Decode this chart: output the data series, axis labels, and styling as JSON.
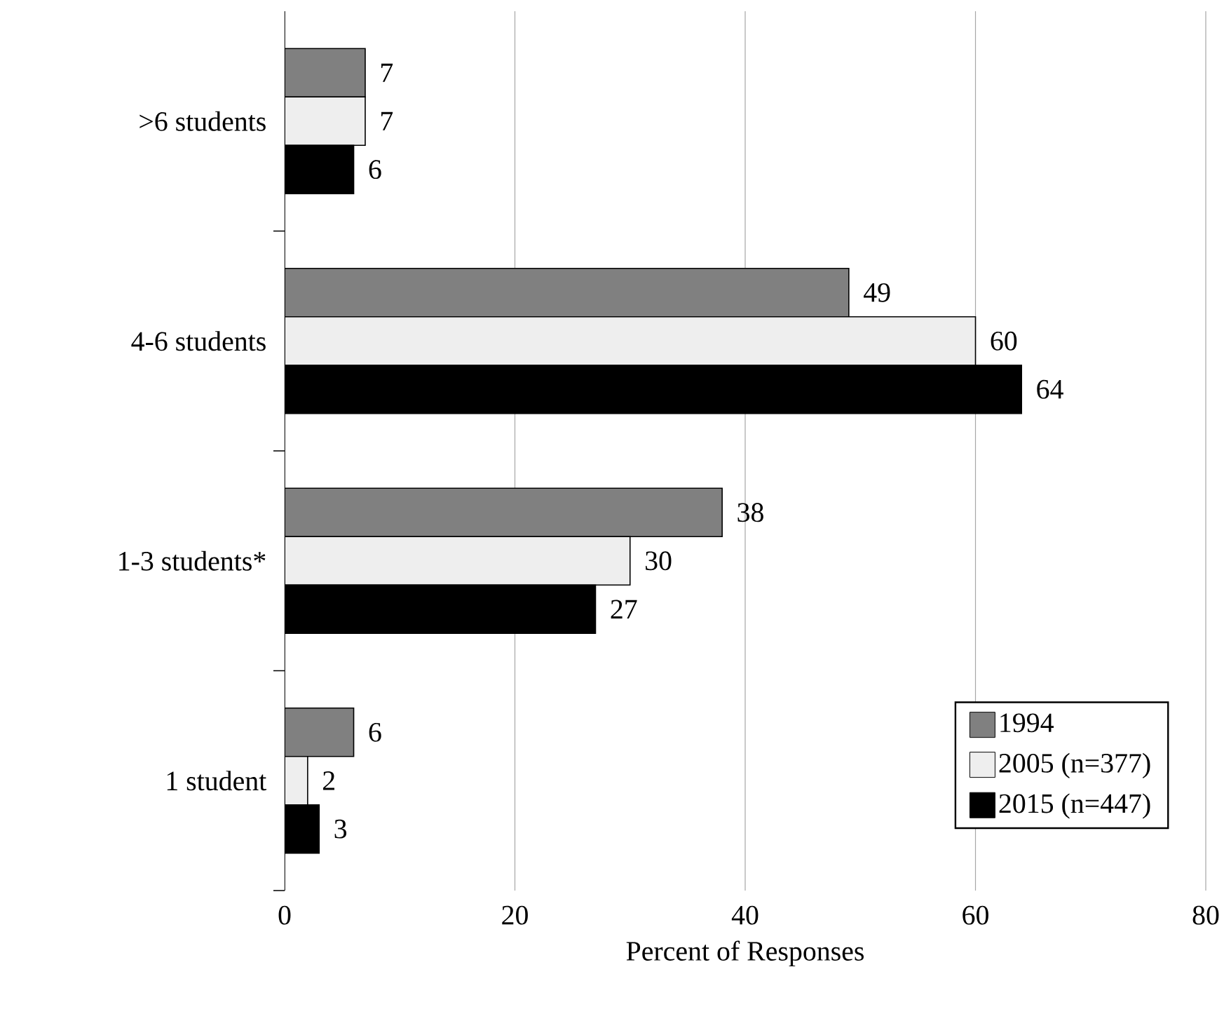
{
  "chart_data": {
    "type": "bar",
    "orientation": "horizontal",
    "xlabel": "Percent of Responses",
    "categories": [
      ">6 students",
      "4-6 students",
      "1-3 students*",
      "1 student"
    ],
    "series": [
      {
        "name": "1994",
        "color": "#808080",
        "values": [
          7,
          49,
          38,
          6
        ]
      },
      {
        "name": "2005 (n=377)",
        "color": "#eeeeee",
        "values": [
          7,
          60,
          30,
          2
        ]
      },
      {
        "name": "2015 (n=447)",
        "color": "#000000",
        "values": [
          6,
          64,
          27,
          3
        ]
      }
    ],
    "xlim": [
      0,
      80
    ],
    "xticks": [
      0,
      20,
      40,
      60,
      80
    ],
    "grid": "x",
    "legend": "bottom right",
    "data_labels": true
  }
}
